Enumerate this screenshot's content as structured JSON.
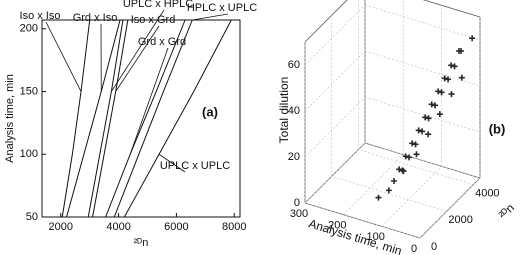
{
  "chart_data": [
    {
      "type": "line",
      "xlabel": "²ᴰn",
      "ylabel": "Analysis time, min",
      "panel_label": "(a)",
      "xlim": [
        1350,
        8200
      ],
      "ylim": [
        50,
        207
      ],
      "xticks": [
        2000,
        4000,
        6000,
        8000
      ],
      "yticks": [
        50,
        100,
        150,
        200
      ],
      "series": [
        {
          "name": "Iso x Iso",
          "color": "#111",
          "x": [
            2050,
            2400,
            2700,
            3000
          ],
          "values": [
            50,
            100,
            150,
            207
          ]
        },
        {
          "name": "Grd x Iso",
          "color": "#111",
          "x": [
            2200,
            2800,
            3400,
            4050
          ],
          "values": [
            50,
            100,
            150,
            207
          ]
        },
        {
          "name": "UPLC x HPLC",
          "color": "#111",
          "x": [
            2950,
            3350,
            3750,
            4150
          ],
          "values": [
            50,
            100,
            150,
            207
          ]
        },
        {
          "name": "Iso x Grd",
          "color": "#111",
          "x": [
            3100,
            3500,
            3900,
            4320
          ],
          "values": [
            50,
            100,
            150,
            207
          ]
        },
        {
          "name": "HPLC x UPLC",
          "color": "#111",
          "x": [
            3850,
            4700,
            5550,
            6550
          ],
          "values": [
            50,
            100,
            150,
            207
          ]
        },
        {
          "name": "Grd x Grd",
          "color": "#111",
          "x": [
            3550,
            4400,
            5300,
            6300
          ],
          "values": [
            50,
            100,
            150,
            207
          ]
        },
        {
          "name": "UPLC x UPLC",
          "color": "#111",
          "x": [
            4200,
            5400,
            6600,
            7900
          ],
          "values": [
            50,
            100,
            150,
            207
          ]
        }
      ]
    },
    {
      "type": "scatter3d",
      "xlabel": "Analysis time, min",
      "ylabel": "²ᴰn",
      "zlabel": "Total dilution",
      "panel_label": "(b)",
      "xlim": [
        0,
        300
      ],
      "ylim": [
        0,
        4500
      ],
      "zlim": [
        0,
        70
      ],
      "xticks": [
        0,
        100,
        200,
        300
      ],
      "yticks": [
        0,
        2000,
        4000
      ],
      "zticks": [
        0,
        20,
        40,
        60
      ],
      "color": "#2a2a2a",
      "x": [
        20,
        30,
        25,
        40,
        35,
        50,
        45,
        60,
        55,
        70,
        65,
        80,
        75,
        90,
        85,
        100,
        95,
        110,
        105,
        120,
        115,
        130,
        30,
        50,
        70,
        90,
        110,
        130,
        150,
        10
      ],
      "y": [
        3500,
        3200,
        3800,
        3000,
        3600,
        2800,
        3400,
        2600,
        3200,
        2400,
        3000,
        2200,
        2800,
        2000,
        2600,
        1800,
        2400,
        1600,
        2200,
        1500,
        2000,
        1400,
        4000,
        3800,
        3500,
        3200,
        2900,
        2500,
        1200,
        4200
      ],
      "z": [
        60,
        55,
        58,
        50,
        52,
        45,
        47,
        40,
        42,
        35,
        37,
        30,
        32,
        25,
        27,
        20,
        22,
        15,
        17,
        10,
        12,
        6,
        45,
        38,
        30,
        22,
        14,
        8,
        3,
        62
      ]
    }
  ]
}
